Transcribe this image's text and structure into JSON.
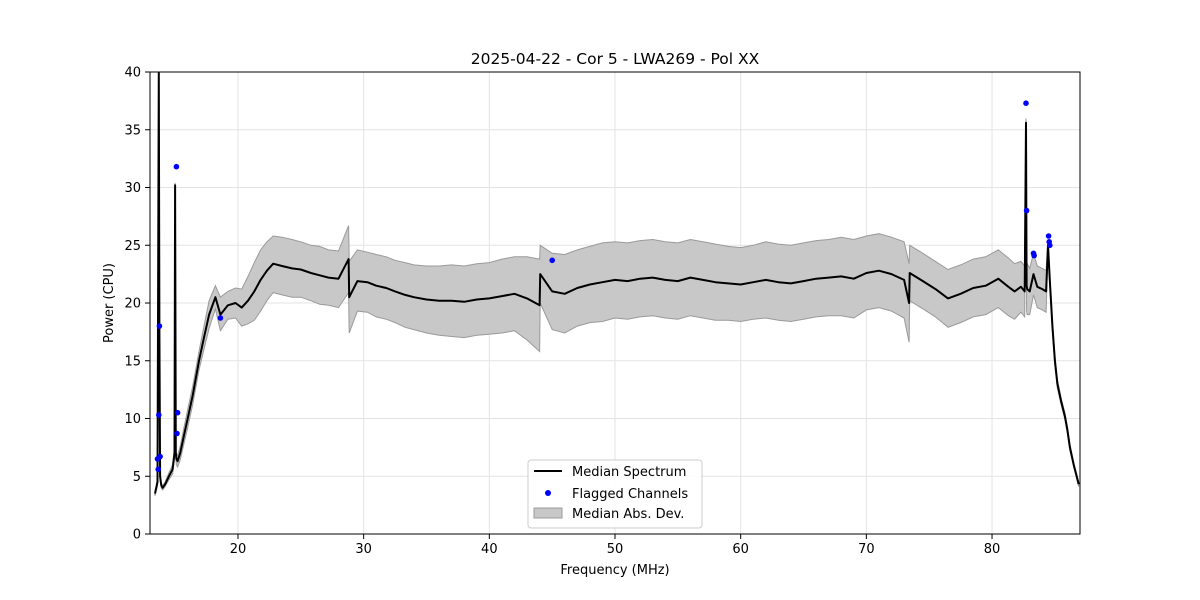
{
  "chart_data": {
    "type": "line",
    "title": "2025-04-22 - Cor 5 - LWA269 - Pol XX",
    "xlabel": "Frequency (MHz)",
    "ylabel": "Power (CPU)",
    "xlim": [
      13,
      87
    ],
    "ylim": [
      0,
      40
    ],
    "xticks": [
      20,
      30,
      40,
      50,
      60,
      70,
      80
    ],
    "yticks": [
      0,
      5,
      10,
      15,
      20,
      25,
      30,
      35,
      40
    ],
    "grid": true,
    "legend_position": "bottom-center",
    "colors": {
      "median": "#000000",
      "flagged": "#0000ff",
      "mad_fill": "#c8c8c8",
      "mad_edge": "#9a9a9a"
    },
    "legend": [
      {
        "label": "Median Spectrum",
        "kind": "line"
      },
      {
        "label": "Flagged Channels",
        "kind": "marker"
      },
      {
        "label": "Median Abs. Dev.",
        "kind": "patch"
      }
    ],
    "median_spectrum": {
      "x": [
        13.4,
        13.6,
        13.7,
        13.75,
        13.8,
        13.9,
        14.0,
        14.2,
        14.5,
        14.8,
        14.95,
        15.0,
        15.05,
        15.1,
        15.2,
        15.4,
        15.7,
        16.0,
        16.4,
        16.9,
        17.3,
        17.7,
        18.2,
        18.6,
        19.2,
        19.8,
        20.3,
        20.8,
        21.3,
        21.8,
        22.3,
        22.8,
        23.5,
        24.3,
        25.0,
        25.8,
        26.5,
        27.2,
        28.0,
        28.8,
        28.85,
        29.5,
        30.3,
        31.0,
        31.8,
        32.5,
        33.3,
        34.0,
        35.0,
        36.0,
        37.0,
        38.0,
        39.0,
        40.0,
        41.0,
        42.0,
        43.0,
        44.0,
        44.05,
        45.0,
        46.0,
        47.0,
        48.0,
        49.0,
        50.0,
        51.0,
        52.0,
        53.0,
        54.0,
        55.0,
        56.0,
        57.0,
        58.0,
        59.0,
        60.0,
        61.0,
        62.0,
        63.0,
        64.0,
        65.0,
        66.0,
        67.0,
        68.0,
        69.0,
        70.0,
        71.0,
        72.0,
        73.0,
        73.4,
        73.45,
        74.5,
        75.5,
        76.5,
        77.5,
        78.5,
        79.5,
        80.5,
        81.3,
        81.8,
        82.3,
        82.6,
        82.7,
        82.75,
        82.8,
        83.0,
        83.3,
        83.6,
        84.0,
        84.3,
        84.45,
        84.5,
        84.6,
        84.8,
        85.0,
        85.2,
        85.5,
        85.8,
        86.0,
        86.2,
        86.5,
        86.9
      ],
      "y": [
        3.5,
        4.5,
        40.0,
        17.5,
        5.0,
        4.2,
        4.0,
        4.3,
        5.0,
        5.6,
        7.0,
        30.2,
        7.0,
        6.5,
        6.3,
        7.0,
        8.5,
        10.0,
        12.0,
        15.0,
        17.0,
        19.0,
        20.5,
        19.0,
        19.8,
        20.0,
        19.6,
        20.2,
        21.0,
        22.0,
        22.8,
        23.4,
        23.2,
        23.0,
        22.9,
        22.6,
        22.4,
        22.2,
        22.1,
        23.8,
        20.5,
        21.9,
        21.8,
        21.5,
        21.3,
        21.0,
        20.7,
        20.5,
        20.3,
        20.2,
        20.2,
        20.1,
        20.3,
        20.4,
        20.6,
        20.8,
        20.4,
        19.8,
        22.5,
        21.0,
        20.8,
        21.3,
        21.6,
        21.8,
        22.0,
        21.9,
        22.1,
        22.2,
        22.0,
        21.9,
        22.2,
        22.0,
        21.8,
        21.7,
        21.6,
        21.8,
        22.0,
        21.8,
        21.7,
        21.9,
        22.1,
        22.2,
        22.3,
        22.1,
        22.6,
        22.8,
        22.5,
        22.0,
        20.0,
        22.6,
        21.9,
        21.2,
        20.4,
        20.8,
        21.3,
        21.5,
        22.1,
        21.4,
        21.0,
        21.4,
        21.0,
        35.6,
        21.5,
        21.2,
        21.0,
        22.5,
        21.4,
        21.2,
        21.0,
        25.0,
        24.0,
        22.0,
        18.0,
        15.0,
        13.0,
        11.5,
        10.2,
        9.0,
        7.5,
        6.0,
        4.3
      ],
      "mad_upper": [
        3.7,
        4.8,
        40.0,
        18.2,
        5.3,
        4.4,
        4.2,
        4.5,
        5.3,
        6.0,
        7.5,
        30.4,
        7.5,
        7.0,
        6.8,
        7.6,
        9.2,
        10.8,
        12.8,
        15.8,
        18.0,
        20.2,
        21.5,
        20.5,
        21.0,
        21.3,
        21.2,
        22.3,
        23.5,
        24.6,
        25.3,
        25.8,
        25.7,
        25.5,
        25.3,
        25.0,
        24.9,
        24.6,
        24.5,
        26.7,
        23.6,
        24.6,
        24.4,
        24.2,
        24.0,
        23.7,
        23.5,
        23.3,
        23.2,
        23.2,
        23.3,
        23.2,
        23.4,
        23.5,
        23.8,
        24.0,
        24.0,
        23.8,
        25.0,
        24.3,
        24.2,
        24.6,
        24.9,
        25.2,
        25.3,
        25.2,
        25.4,
        25.5,
        25.3,
        25.2,
        25.5,
        25.3,
        25.1,
        24.9,
        24.8,
        25.0,
        25.3,
        25.1,
        25.0,
        25.2,
        25.4,
        25.5,
        25.7,
        25.5,
        25.8,
        26.0,
        25.7,
        25.3,
        23.4,
        25.0,
        24.3,
        23.6,
        22.9,
        23.3,
        23.8,
        24.0,
        24.6,
        23.9,
        23.4,
        23.6,
        23.2,
        36.0,
        23.7,
        23.4,
        23.0,
        24.3,
        23.2,
        23.0,
        22.8,
        25.5,
        24.5,
        22.5,
        18.5,
        15.5,
        13.4,
        11.8,
        10.5,
        9.3,
        7.8,
        6.2,
        4.5
      ],
      "mad_lower": [
        3.3,
        4.2,
        15.0,
        16.8,
        4.7,
        4.0,
        3.8,
        4.1,
        4.7,
        5.2,
        6.5,
        8.0,
        6.5,
        6.0,
        5.8,
        6.4,
        7.8,
        9.2,
        11.2,
        14.2,
        16.0,
        17.8,
        19.5,
        17.6,
        18.6,
        18.7,
        18.0,
        18.2,
        18.5,
        19.3,
        20.2,
        20.9,
        20.7,
        20.5,
        20.5,
        20.2,
        19.9,
        19.8,
        19.6,
        20.9,
        17.4,
        19.3,
        19.2,
        18.8,
        18.6,
        18.3,
        17.9,
        17.7,
        17.4,
        17.2,
        17.1,
        17.0,
        17.2,
        17.3,
        17.4,
        17.6,
        16.8,
        15.8,
        20.0,
        17.7,
        17.4,
        18.0,
        18.3,
        18.4,
        18.7,
        18.6,
        18.8,
        18.9,
        18.7,
        18.6,
        18.9,
        18.7,
        18.5,
        18.5,
        18.4,
        18.6,
        18.7,
        18.5,
        18.4,
        18.6,
        18.8,
        18.9,
        18.9,
        18.7,
        19.4,
        19.6,
        19.3,
        18.7,
        16.6,
        20.2,
        19.5,
        18.8,
        17.9,
        18.3,
        18.8,
        19.0,
        19.6,
        18.9,
        18.6,
        19.2,
        18.8,
        35.0,
        19.3,
        19.0,
        19.0,
        20.7,
        19.6,
        19.4,
        19.2,
        24.5,
        23.5,
        21.5,
        17.5,
        14.5,
        12.6,
        11.2,
        9.9,
        8.7,
        7.2,
        5.8,
        4.1
      ]
    },
    "flagged_channels": {
      "x": [
        13.6,
        13.65,
        13.7,
        13.75,
        13.8,
        15.1,
        15.15,
        15.2,
        18.6,
        45.0,
        82.7,
        82.75,
        83.3,
        83.35,
        84.5,
        84.55,
        84.6
      ],
      "y": [
        6.5,
        5.6,
        10.3,
        18.0,
        6.7,
        31.8,
        8.7,
        10.5,
        18.7,
        23.7,
        37.3,
        28.0,
        24.3,
        24.1,
        25.8,
        25.3,
        25.0
      ]
    }
  }
}
